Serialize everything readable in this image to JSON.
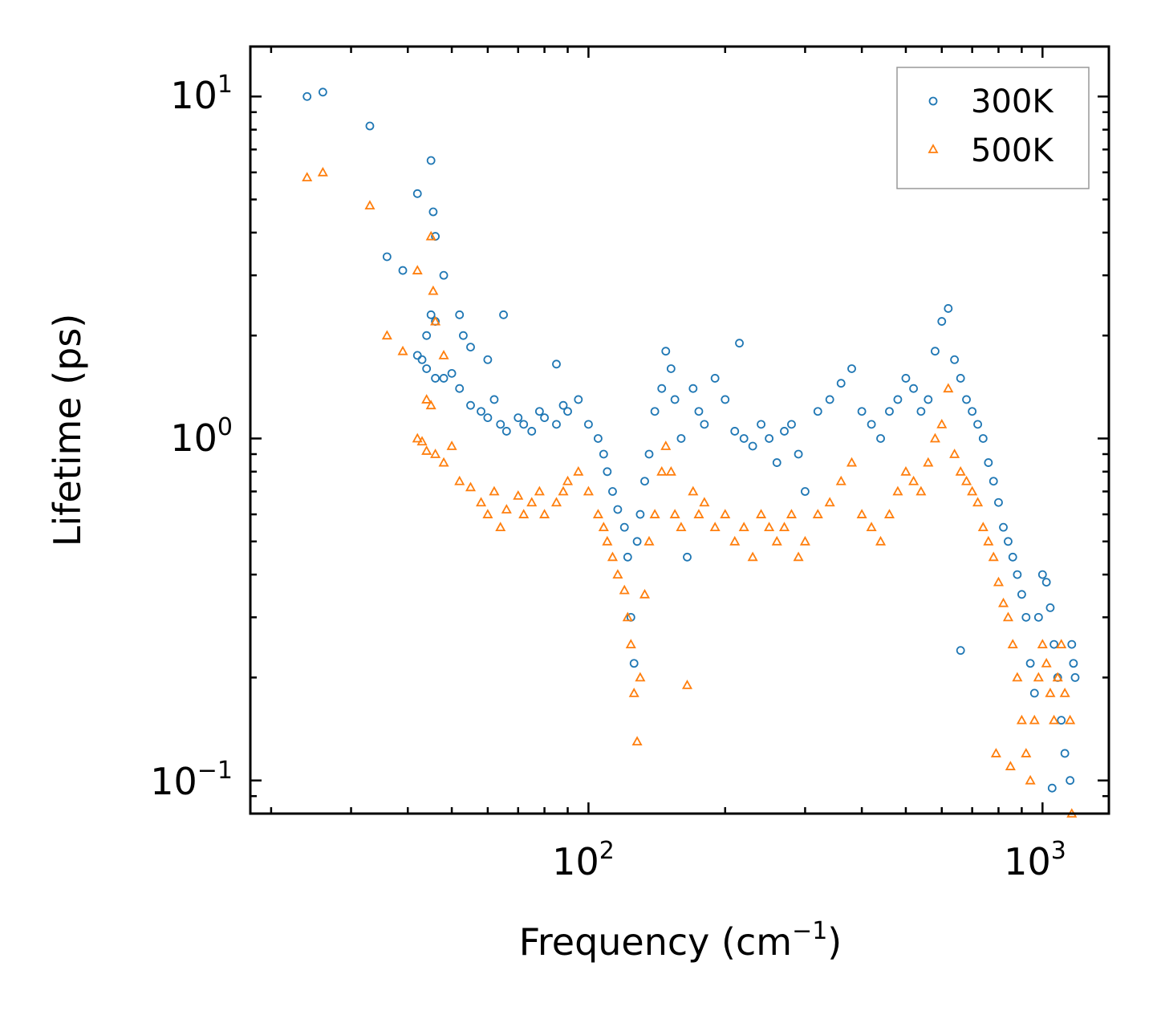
{
  "chart_data": {
    "type": "scatter",
    "xscale": "log",
    "yscale": "log",
    "xlim": [
      18,
      1400
    ],
    "ylim": [
      0.08,
      14
    ],
    "xlabel": "Frequency (cm",
    "xlabel_sup": "−1",
    "xlabel_tail": ")",
    "ylabel": "Lifetime (ps)",
    "x_ticks": [
      {
        "value": 100,
        "base": "10",
        "exp": "2"
      },
      {
        "value": 1000,
        "base": "10",
        "exp": "3"
      }
    ],
    "y_ticks": [
      {
        "value": 0.1,
        "base": "10",
        "exp": "−1"
      },
      {
        "value": 1,
        "base": "10",
        "exp": "0"
      },
      {
        "value": 10,
        "base": "10",
        "exp": "1"
      }
    ],
    "legend_position": "top-right",
    "series": [
      {
        "name": "300K",
        "marker": "circle",
        "color": "#1f77b4",
        "points": [
          [
            24,
            10.0
          ],
          [
            26,
            10.3
          ],
          [
            33,
            8.2
          ],
          [
            36,
            3.4
          ],
          [
            39,
            3.1
          ],
          [
            42,
            5.2
          ],
          [
            45,
            6.5
          ],
          [
            45.5,
            4.6
          ],
          [
            46,
            3.9
          ],
          [
            48,
            3.0
          ],
          [
            45,
            2.3
          ],
          [
            46,
            2.2
          ],
          [
            44,
            2.0
          ],
          [
            52,
            2.3
          ],
          [
            53,
            2.0
          ],
          [
            55,
            1.85
          ],
          [
            60,
            1.7
          ],
          [
            65,
            2.3
          ],
          [
            85,
            1.65
          ],
          [
            215,
            1.9
          ],
          [
            42,
            1.75
          ],
          [
            43,
            1.7
          ],
          [
            44,
            1.6
          ],
          [
            46,
            1.5
          ],
          [
            48,
            1.5
          ],
          [
            50,
            1.55
          ],
          [
            52,
            1.4
          ],
          [
            55,
            1.25
          ],
          [
            58,
            1.2
          ],
          [
            60,
            1.15
          ],
          [
            62,
            1.3
          ],
          [
            64,
            1.1
          ],
          [
            66,
            1.05
          ],
          [
            70,
            1.15
          ],
          [
            72,
            1.1
          ],
          [
            75,
            1.05
          ],
          [
            78,
            1.2
          ],
          [
            80,
            1.15
          ],
          [
            85,
            1.1
          ],
          [
            88,
            1.25
          ],
          [
            90,
            1.2
          ],
          [
            95,
            1.3
          ],
          [
            100,
            1.1
          ],
          [
            105,
            1.0
          ],
          [
            108,
            0.9
          ],
          [
            110,
            0.8
          ],
          [
            113,
            0.7
          ],
          [
            116,
            0.62
          ],
          [
            120,
            0.55
          ],
          [
            122,
            0.45
          ],
          [
            124,
            0.3
          ],
          [
            126,
            0.22
          ],
          [
            128,
            0.5
          ],
          [
            130,
            0.6
          ],
          [
            133,
            0.75
          ],
          [
            136,
            0.9
          ],
          [
            140,
            1.2
          ],
          [
            145,
            1.4
          ],
          [
            148,
            1.8
          ],
          [
            152,
            1.6
          ],
          [
            155,
            1.3
          ],
          [
            160,
            1.0
          ],
          [
            165,
            0.45
          ],
          [
            170,
            1.4
          ],
          [
            175,
            1.2
          ],
          [
            180,
            1.1
          ],
          [
            190,
            1.5
          ],
          [
            200,
            1.3
          ],
          [
            210,
            1.05
          ],
          [
            220,
            1.0
          ],
          [
            230,
            0.95
          ],
          [
            240,
            1.1
          ],
          [
            250,
            1.0
          ],
          [
            260,
            0.85
          ],
          [
            270,
            1.05
          ],
          [
            280,
            1.1
          ],
          [
            290,
            0.9
          ],
          [
            300,
            0.7
          ],
          [
            320,
            1.2
          ],
          [
            340,
            1.3
          ],
          [
            360,
            1.45
          ],
          [
            380,
            1.6
          ],
          [
            400,
            1.2
          ],
          [
            420,
            1.1
          ],
          [
            440,
            1.0
          ],
          [
            460,
            1.2
          ],
          [
            480,
            1.3
          ],
          [
            500,
            1.5
          ],
          [
            520,
            1.4
          ],
          [
            540,
            1.2
          ],
          [
            560,
            1.3
          ],
          [
            580,
            1.8
          ],
          [
            600,
            2.2
          ],
          [
            620,
            2.4
          ],
          [
            640,
            1.7
          ],
          [
            660,
            1.5
          ],
          [
            680,
            1.3
          ],
          [
            700,
            1.2
          ],
          [
            720,
            1.1
          ],
          [
            740,
            1.0
          ],
          [
            760,
            0.85
          ],
          [
            780,
            0.75
          ],
          [
            800,
            0.65
          ],
          [
            820,
            0.55
          ],
          [
            840,
            0.5
          ],
          [
            860,
            0.45
          ],
          [
            880,
            0.4
          ],
          [
            900,
            0.35
          ],
          [
            920,
            0.3
          ],
          [
            940,
            0.22
          ],
          [
            960,
            0.18
          ],
          [
            980,
            0.3
          ],
          [
            1000,
            0.4
          ],
          [
            1020,
            0.38
          ],
          [
            1040,
            0.32
          ],
          [
            1060,
            0.25
          ],
          [
            1080,
            0.2
          ],
          [
            1100,
            0.15
          ],
          [
            1120,
            0.12
          ],
          [
            1150,
            0.1
          ],
          [
            1160,
            0.25
          ],
          [
            1170,
            0.22
          ],
          [
            1180,
            0.2
          ],
          [
            1050,
            0.095
          ],
          [
            660,
            0.24
          ]
        ]
      },
      {
        "name": "500K",
        "marker": "triangle",
        "color": "#ff7f0e",
        "points": [
          [
            24,
            5.8
          ],
          [
            26,
            6.0
          ],
          [
            33,
            4.8
          ],
          [
            36,
            2.0
          ],
          [
            39,
            1.8
          ],
          [
            42,
            3.1
          ],
          [
            45,
            3.9
          ],
          [
            45.5,
            2.7
          ],
          [
            46,
            2.2
          ],
          [
            48,
            1.75
          ],
          [
            44,
            1.3
          ],
          [
            45,
            1.25
          ],
          [
            42,
            1.0
          ],
          [
            43,
            0.98
          ],
          [
            44,
            0.92
          ],
          [
            46,
            0.9
          ],
          [
            48,
            0.85
          ],
          [
            50,
            0.95
          ],
          [
            52,
            0.75
          ],
          [
            55,
            0.72
          ],
          [
            58,
            0.65
          ],
          [
            60,
            0.6
          ],
          [
            62,
            0.7
          ],
          [
            64,
            0.55
          ],
          [
            66,
            0.62
          ],
          [
            70,
            0.68
          ],
          [
            72,
            0.6
          ],
          [
            75,
            0.65
          ],
          [
            78,
            0.7
          ],
          [
            80,
            0.6
          ],
          [
            85,
            0.65
          ],
          [
            88,
            0.7
          ],
          [
            90,
            0.75
          ],
          [
            95,
            0.8
          ],
          [
            100,
            0.7
          ],
          [
            105,
            0.6
          ],
          [
            108,
            0.55
          ],
          [
            110,
            0.5
          ],
          [
            113,
            0.45
          ],
          [
            116,
            0.4
          ],
          [
            120,
            0.36
          ],
          [
            122,
            0.3
          ],
          [
            124,
            0.25
          ],
          [
            126,
            0.18
          ],
          [
            128,
            0.13
          ],
          [
            130,
            0.2
          ],
          [
            133,
            0.35
          ],
          [
            136,
            0.5
          ],
          [
            140,
            0.6
          ],
          [
            145,
            0.8
          ],
          [
            148,
            0.95
          ],
          [
            152,
            0.8
          ],
          [
            155,
            0.6
          ],
          [
            160,
            0.55
          ],
          [
            165,
            0.19
          ],
          [
            170,
            0.7
          ],
          [
            175,
            0.6
          ],
          [
            180,
            0.65
          ],
          [
            190,
            0.55
          ],
          [
            200,
            0.6
          ],
          [
            210,
            0.5
          ],
          [
            220,
            0.55
          ],
          [
            230,
            0.45
          ],
          [
            240,
            0.6
          ],
          [
            250,
            0.55
          ],
          [
            260,
            0.5
          ],
          [
            270,
            0.55
          ],
          [
            280,
            0.6
          ],
          [
            290,
            0.45
          ],
          [
            300,
            0.5
          ],
          [
            320,
            0.6
          ],
          [
            340,
            0.65
          ],
          [
            360,
            0.75
          ],
          [
            380,
            0.85
          ],
          [
            400,
            0.6
          ],
          [
            420,
            0.55
          ],
          [
            440,
            0.5
          ],
          [
            460,
            0.6
          ],
          [
            480,
            0.7
          ],
          [
            500,
            0.8
          ],
          [
            520,
            0.75
          ],
          [
            540,
            0.7
          ],
          [
            560,
            0.85
          ],
          [
            580,
            1.0
          ],
          [
            600,
            1.1
          ],
          [
            620,
            1.4
          ],
          [
            640,
            0.9
          ],
          [
            660,
            0.8
          ],
          [
            680,
            0.75
          ],
          [
            700,
            0.7
          ],
          [
            720,
            0.65
          ],
          [
            740,
            0.55
          ],
          [
            760,
            0.5
          ],
          [
            780,
            0.45
          ],
          [
            800,
            0.38
          ],
          [
            820,
            0.33
          ],
          [
            840,
            0.3
          ],
          [
            860,
            0.25
          ],
          [
            880,
            0.2
          ],
          [
            900,
            0.15
          ],
          [
            920,
            0.12
          ],
          [
            940,
            0.1
          ],
          [
            960,
            0.15
          ],
          [
            980,
            0.2
          ],
          [
            1000,
            0.25
          ],
          [
            1020,
            0.22
          ],
          [
            1040,
            0.18
          ],
          [
            1060,
            0.15
          ],
          [
            1080,
            0.2
          ],
          [
            1100,
            0.25
          ],
          [
            1120,
            0.18
          ],
          [
            1150,
            0.15
          ],
          [
            1160,
            0.08
          ],
          [
            790,
            0.12
          ],
          [
            850,
            0.11
          ]
        ]
      }
    ]
  }
}
